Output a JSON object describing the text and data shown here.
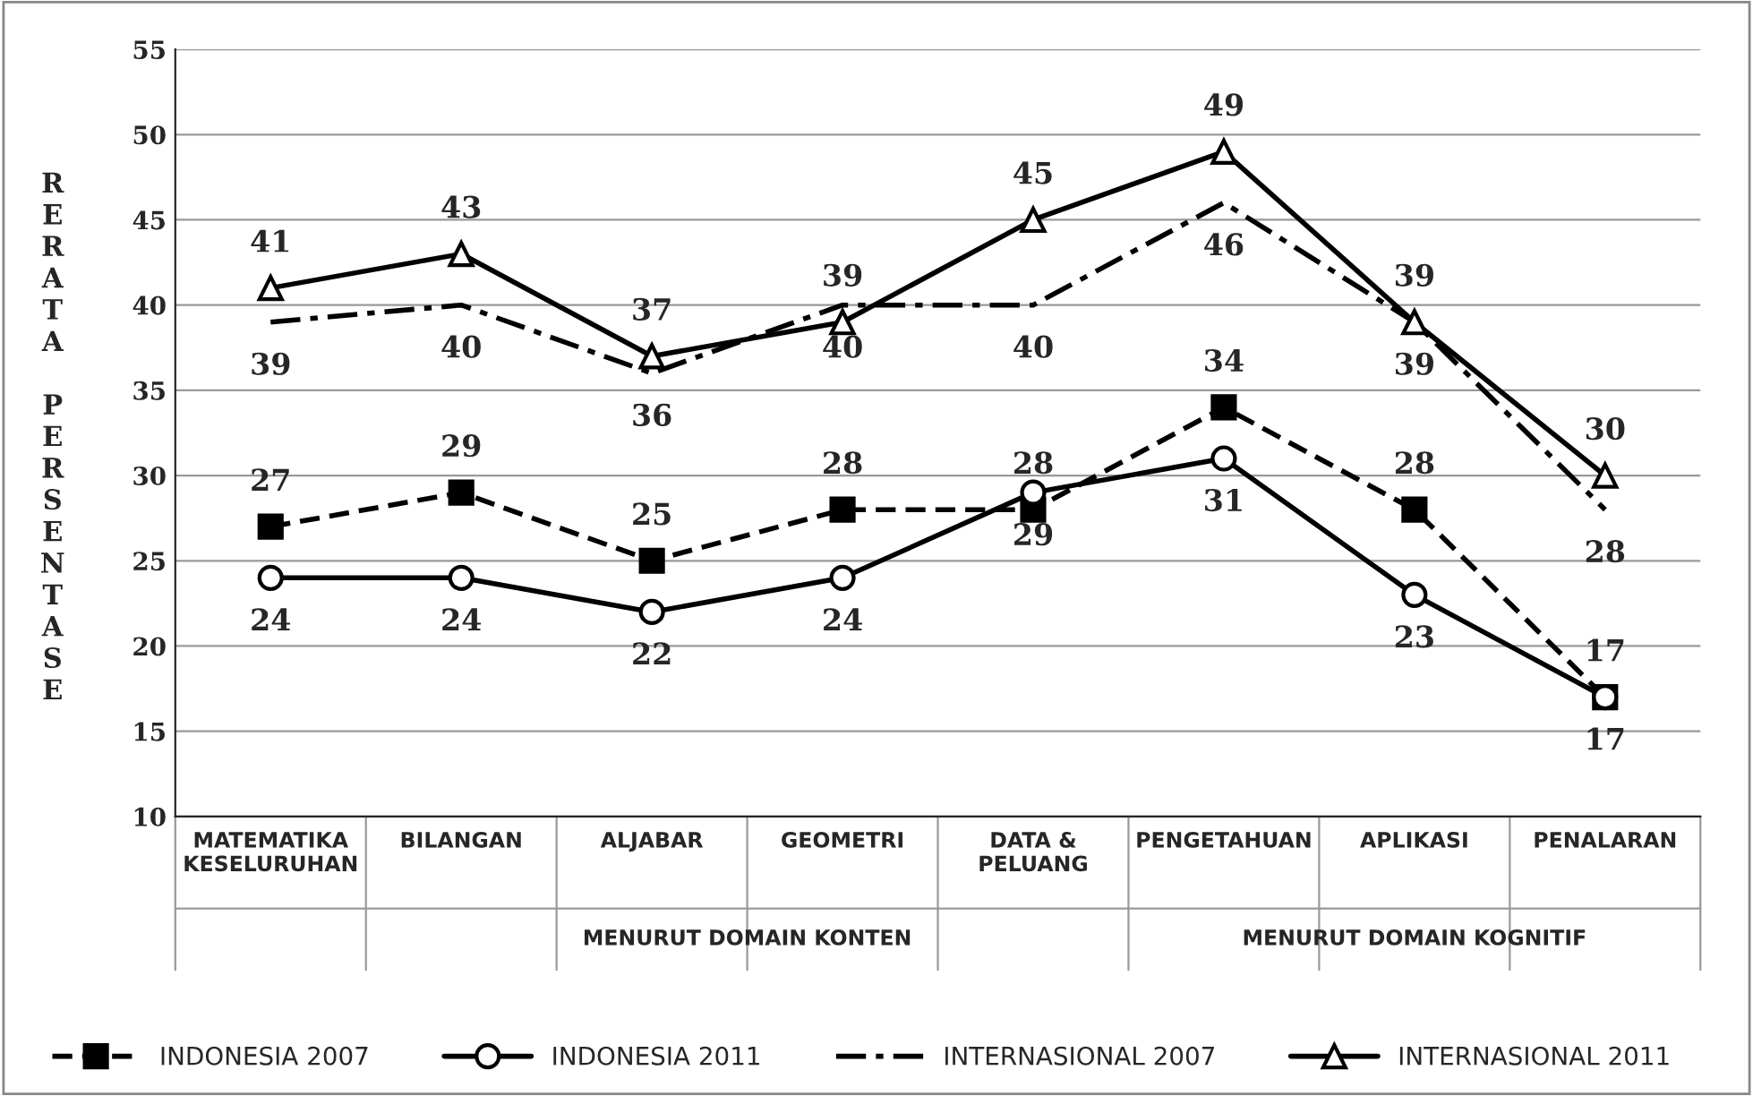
{
  "chart_data": {
    "type": "line",
    "ylabel": "RERATA PERSENTASE",
    "categories": [
      "MATEMATIKA\nKESELURUHAN",
      "BILANGAN",
      "ALJABAR",
      "GEOMETRI",
      "DATA &\nPELUANG",
      "PENGETAHUAN",
      "APLIKASI",
      "PENALARAN"
    ],
    "series": [
      {
        "name": "INDONESIA 2007",
        "color": "#000000",
        "values": [
          27,
          29,
          25,
          28,
          28,
          34,
          28,
          17
        ],
        "marker": "square",
        "line_style": "dashed"
      },
      {
        "name": "INDONESIA 2011",
        "color": "#000000",
        "values": [
          24,
          24,
          22,
          24,
          29,
          31,
          23,
          17
        ],
        "marker": "circle",
        "line_style": "solid"
      },
      {
        "name": "INTERNASIONAL 2007",
        "color": "#000000",
        "values": [
          39,
          40,
          36,
          40,
          40,
          46,
          39,
          28
        ],
        "marker": "none",
        "line_style": "dashdot"
      },
      {
        "name": "INTERNASIONAL 2011",
        "color": "#000000",
        "values": [
          41,
          43,
          37,
          39,
          45,
          49,
          39,
          30
        ],
        "marker": "triangle",
        "line_style": "solid"
      }
    ],
    "annotations": [
      "MENURUT DOMAIN KONTEN",
      "MENURUT DOMAIN KOGNITIF"
    ],
    "ylim": [
      10,
      55
    ],
    "yticks": [
      10,
      15,
      20,
      25,
      30,
      35,
      40,
      45,
      50,
      55
    ],
    "grid": "y",
    "legend": "bottom",
    "data_labels": true
  }
}
